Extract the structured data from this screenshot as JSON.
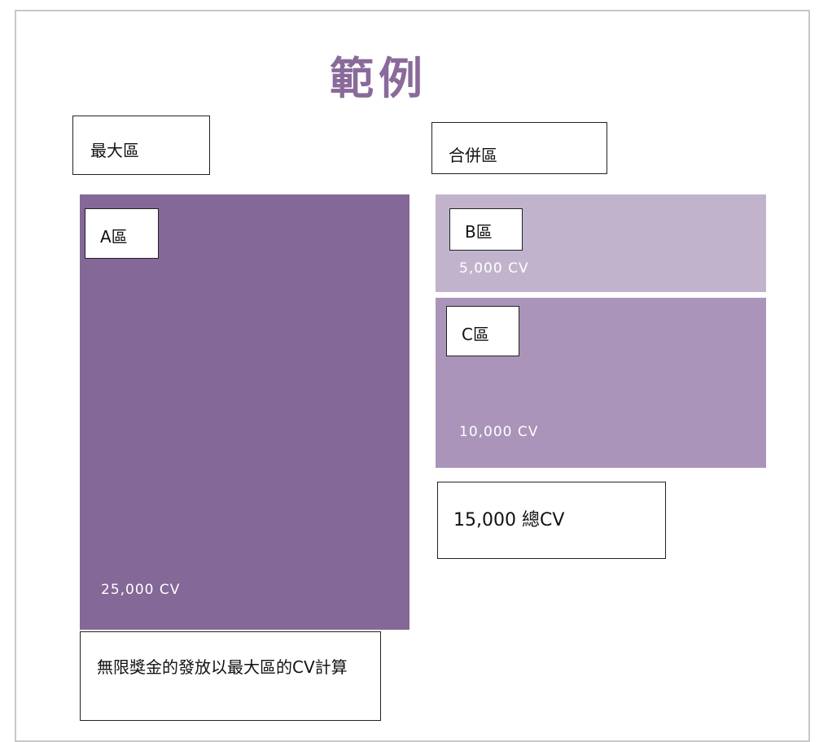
{
  "title": "範例",
  "largest_leg": {
    "label": "最大區",
    "zone": {
      "name": "A區",
      "cv": "25,000 CV"
    }
  },
  "combined_legs": {
    "label": "合併區",
    "zones": [
      {
        "name": "B區",
        "cv": "5,000 CV"
      },
      {
        "name": "C區",
        "cv": "10,000 CV"
      }
    ],
    "total": "15,000 總CV"
  },
  "note": "無限獎金的發放以最大區的CV計算"
}
